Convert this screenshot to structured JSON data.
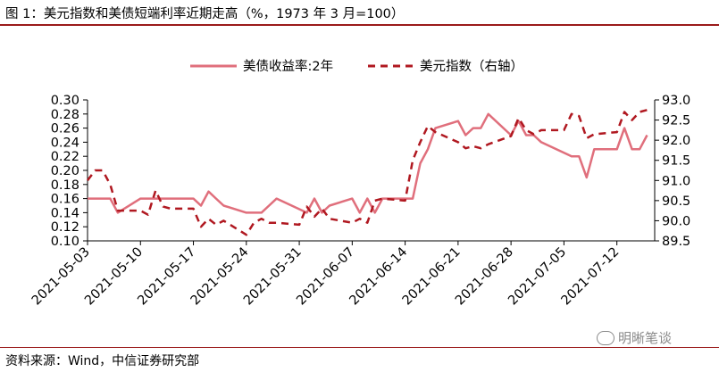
{
  "figure": {
    "title": "图 1：美元指数和美债短端利率近期走高（%，1973 年 3 月=100）",
    "source": "资料来源：Wind，中信证券研究部",
    "watermark": "明晰笔谈"
  },
  "chart_data": {
    "type": "line",
    "title": "",
    "xlabel": "",
    "ylabel": "",
    "x_tick_labels": [
      "2021-05-03",
      "2021-05-10",
      "2021-05-17",
      "2021-05-24",
      "2021-05-31",
      "2021-06-07",
      "2021-06-14",
      "2021-06-21",
      "2021-06-28",
      "2021-07-05",
      "2021-07-12"
    ],
    "y_left": {
      "lim": [
        0.1,
        0.3
      ],
      "ticks": [
        "0.30",
        "0.28",
        "0.26",
        "0.24",
        "0.22",
        "0.20",
        "0.18",
        "0.16",
        "0.14",
        "0.12",
        "0.10"
      ]
    },
    "y_right": {
      "lim": [
        89.5,
        93.0
      ],
      "ticks": [
        "93.0",
        "92.5",
        "92.0",
        "91.5",
        "91.0",
        "90.5",
        "90.0",
        "89.5"
      ]
    },
    "legend_position": "top",
    "grid": false,
    "series": [
      {
        "name": "美债收益率:2年",
        "axis": "left",
        "color": "#e06f7c",
        "style": "solid",
        "x": [
          "2021-05-03",
          "2021-05-04",
          "2021-05-05",
          "2021-05-06",
          "2021-05-07",
          "2021-05-10",
          "2021-05-11",
          "2021-05-12",
          "2021-05-13",
          "2021-05-14",
          "2021-05-17",
          "2021-05-18",
          "2021-05-19",
          "2021-05-20",
          "2021-05-21",
          "2021-05-24",
          "2021-05-25",
          "2021-05-26",
          "2021-05-27",
          "2021-05-28",
          "2021-06-01",
          "2021-06-02",
          "2021-06-03",
          "2021-06-04",
          "2021-06-07",
          "2021-06-08",
          "2021-06-09",
          "2021-06-10",
          "2021-06-11",
          "2021-06-14",
          "2021-06-15",
          "2021-06-16",
          "2021-06-17",
          "2021-06-18",
          "2021-06-21",
          "2021-06-22",
          "2021-06-23",
          "2021-06-24",
          "2021-06-25",
          "2021-06-28",
          "2021-06-29",
          "2021-06-30",
          "2021-07-01",
          "2021-07-02",
          "2021-07-06",
          "2021-07-07",
          "2021-07-08",
          "2021-07-09",
          "2021-07-12",
          "2021-07-13",
          "2021-07-14",
          "2021-07-15",
          "2021-07-16"
        ],
        "values": [
          0.16,
          0.16,
          0.16,
          0.16,
          0.14,
          0.16,
          0.16,
          0.16,
          0.16,
          0.16,
          0.16,
          0.15,
          0.17,
          0.16,
          0.15,
          0.14,
          0.14,
          0.14,
          0.15,
          0.16,
          0.14,
          0.16,
          0.14,
          0.15,
          0.16,
          0.14,
          0.16,
          0.14,
          0.16,
          0.16,
          0.16,
          0.21,
          0.23,
          0.26,
          0.27,
          0.25,
          0.26,
          0.26,
          0.28,
          0.25,
          0.27,
          0.25,
          0.25,
          0.24,
          0.22,
          0.22,
          0.19,
          0.23,
          0.23,
          0.26,
          0.23,
          0.23,
          0.25
        ]
      },
      {
        "name": "美元指数（右轴）",
        "axis": "right",
        "color": "#b01820",
        "style": "dashed",
        "x": [
          "2021-05-03",
          "2021-05-04",
          "2021-05-05",
          "2021-05-06",
          "2021-05-07",
          "2021-05-10",
          "2021-05-11",
          "2021-05-12",
          "2021-05-13",
          "2021-05-14",
          "2021-05-17",
          "2021-05-18",
          "2021-05-19",
          "2021-05-20",
          "2021-05-21",
          "2021-05-24",
          "2021-05-25",
          "2021-05-26",
          "2021-05-27",
          "2021-05-28",
          "2021-05-31",
          "2021-06-01",
          "2021-06-02",
          "2021-06-03",
          "2021-06-04",
          "2021-06-07",
          "2021-06-08",
          "2021-06-09",
          "2021-06-10",
          "2021-06-11",
          "2021-06-14",
          "2021-06-15",
          "2021-06-16",
          "2021-06-17",
          "2021-06-18",
          "2021-06-21",
          "2021-06-22",
          "2021-06-23",
          "2021-06-24",
          "2021-06-25",
          "2021-06-28",
          "2021-06-29",
          "2021-06-30",
          "2021-07-01",
          "2021-07-02",
          "2021-07-05",
          "2021-07-06",
          "2021-07-07",
          "2021-07-08",
          "2021-07-09",
          "2021-07-12",
          "2021-07-13",
          "2021-07-14",
          "2021-07-15",
          "2021-07-16"
        ],
        "values": [
          91.0,
          91.25,
          91.25,
          90.9,
          90.25,
          90.25,
          90.15,
          90.75,
          90.35,
          90.3,
          90.3,
          89.85,
          90.05,
          89.9,
          90.0,
          89.65,
          89.95,
          90.05,
          89.95,
          89.95,
          89.9,
          90.35,
          90.1,
          90.3,
          90.05,
          89.95,
          90.05,
          89.95,
          90.5,
          90.55,
          90.5,
          91.5,
          91.95,
          92.35,
          92.2,
          91.95,
          91.8,
          91.85,
          91.8,
          91.9,
          92.1,
          92.55,
          92.25,
          92.15,
          92.25,
          92.25,
          92.65,
          92.6,
          92.05,
          92.15,
          92.2,
          92.7,
          92.5,
          92.7,
          92.75
        ]
      }
    ]
  }
}
